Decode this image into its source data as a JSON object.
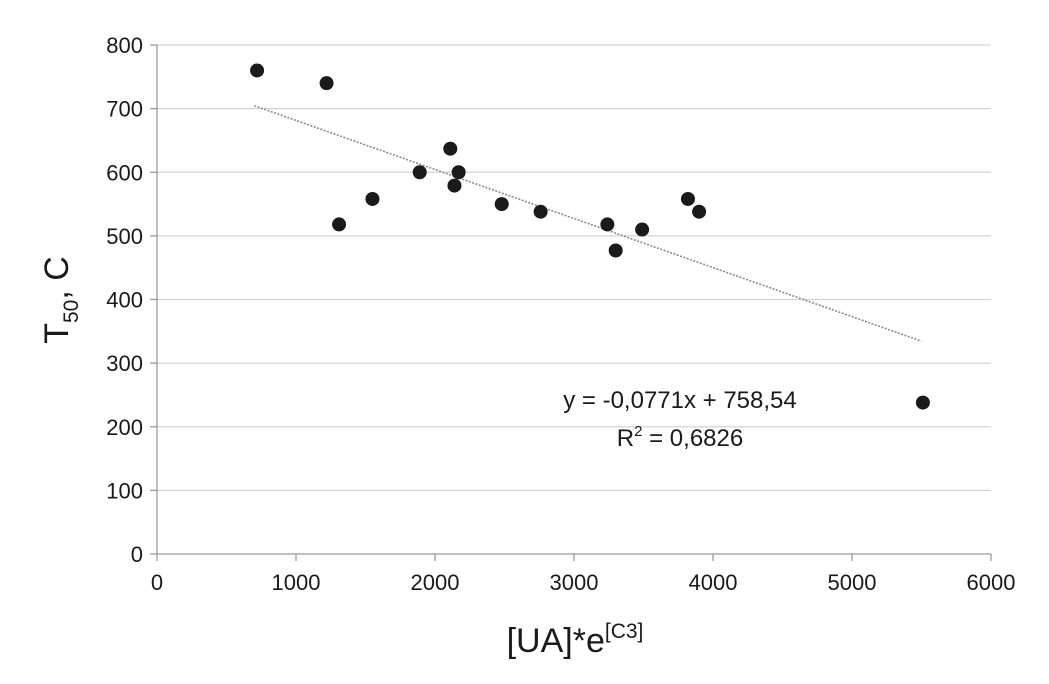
{
  "chart_data": {
    "type": "scatter",
    "title": "",
    "xlabel": {
      "base": "[UA]*e",
      "sup": "[C3]"
    },
    "ylabel": {
      "base": "T",
      "sub": "50",
      "suffix": ", C"
    },
    "xlim": [
      0,
      6000
    ],
    "ylim": [
      0,
      800
    ],
    "xticks": [
      0,
      1000,
      2000,
      3000,
      4000,
      5000,
      6000
    ],
    "yticks": [
      0,
      100,
      200,
      300,
      400,
      500,
      600,
      700,
      800
    ],
    "grid": "horizontal",
    "legend": "none",
    "points": [
      {
        "x": 720,
        "y": 760
      },
      {
        "x": 1220,
        "y": 740
      },
      {
        "x": 1310,
        "y": 518
      },
      {
        "x": 1550,
        "y": 558
      },
      {
        "x": 1890,
        "y": 600
      },
      {
        "x": 2110,
        "y": 637
      },
      {
        "x": 2140,
        "y": 579
      },
      {
        "x": 2170,
        "y": 600
      },
      {
        "x": 2480,
        "y": 550
      },
      {
        "x": 2760,
        "y": 538
      },
      {
        "x": 3240,
        "y": 518
      },
      {
        "x": 3300,
        "y": 477
      },
      {
        "x": 3490,
        "y": 510
      },
      {
        "x": 3820,
        "y": 558
      },
      {
        "x": 3900,
        "y": 538
      },
      {
        "x": 5510,
        "y": 238
      }
    ],
    "trendline": {
      "slope": -0.0771,
      "intercept": 758.54,
      "x_range": [
        700,
        5500
      ],
      "equation_label": "y = -0,0771x + 758,54",
      "r2_label": {
        "prefix": "R",
        "sup": "2",
        "suffix": " = 0,6826"
      }
    },
    "colors": {
      "marker": "#1a1a1a",
      "grid": "#d4d4d4",
      "axis": "#9a9a9a",
      "trend": "#8c8c8c"
    }
  }
}
